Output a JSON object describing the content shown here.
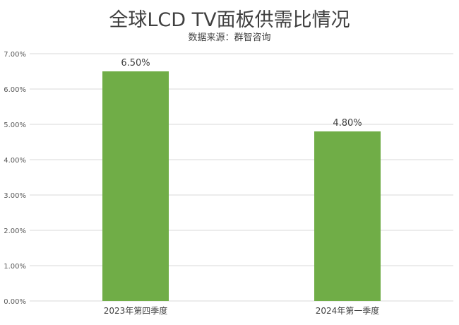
{
  "chart_data": {
    "type": "bar",
    "title": "全球LCD TV面板供需比情况",
    "subtitle": "数据来源：群智咨询",
    "categories": [
      "2023年第四季度",
      "2024年第一季度"
    ],
    "values": [
      6.5,
      4.8
    ],
    "data_labels": [
      "6.50%",
      "4.80%"
    ],
    "ylim": [
      0,
      7
    ],
    "yticks": [
      0,
      1,
      2,
      3,
      4,
      5,
      6,
      7
    ],
    "ytick_labels": [
      "0.00%",
      "1.00%",
      "2.00%",
      "3.00%",
      "4.00%",
      "5.00%",
      "6.00%",
      "7.00%"
    ],
    "grid": true,
    "bar_color": "#70ad47",
    "grid_color": "#d9d9d9"
  }
}
